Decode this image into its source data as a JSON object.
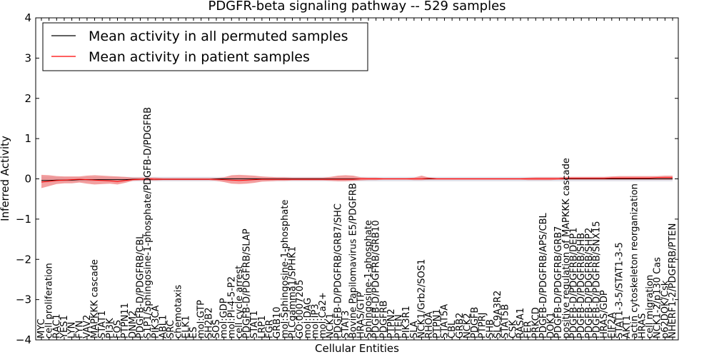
{
  "chart_data": {
    "type": "line",
    "title": "PDGFR-beta signaling pathway -- 529 samples",
    "xlabel": "Cellular Entities",
    "ylabel": "Inferred Activity",
    "ylim": [
      -4,
      4
    ],
    "yticks": [
      -4,
      -3,
      -2,
      -1,
      0,
      1,
      2,
      3,
      4
    ],
    "yticks_labels": [
      "−4",
      "−3",
      "−2",
      "−1",
      "0",
      "1",
      "2",
      "3",
      "4"
    ],
    "grid": false,
    "legend_position": "top-left",
    "categories": [
      "MYC",
      "cell proliferation",
      "RAC1",
      "YES1",
      "LYN",
      "FYN",
      "VAV2",
      "MAPKKK cascade",
      "STAT1",
      "PI3K",
      "FOS",
      "PTPN11",
      "DNM2",
      "PDGFB-D/PDGFRB/CBL",
      "S1P1/Sphingosine-1-phosphate/PDGFB-D/PDGFRB",
      "PIK3CA",
      "ABL1",
      "SRC",
      "chemotaxis",
      "ELK1",
      "ES",
      "mol:GTP",
      "SH2B2",
      "SOS",
      "mol:GDP",
      "mol:PI-4-5-P2",
      "cell cycle arrest",
      "PDGFB-D/PDGFRB/SLAP",
      "STAT1",
      "LRP1",
      "FGR",
      "GRB10",
      "mol:Sphingosine-1-phosphate",
      "PLCgamma1/SPHK1",
      "GO:0007205",
      "mol:DAG",
      "mol:IP3",
      "mol:Ca2+",
      "NCK1",
      "PDGFB-D/PDGFRB/GRB7/SHC",
      "STAT3",
      "Bovine Papilomavirus E5/PDGFRB",
      "HRAS/GTP",
      "Sphingosine-1-phosphate",
      "PDGFB-D/PDGFRB/GRB10",
      "PDGFRB",
      "PTPN2",
      "PTEN",
      "PIK3R1",
      "SLA",
      "NCK1/Grb2/SOS1",
      "RHOA",
      "PTPN1",
      "STAT5A",
      "CBL",
      "GRB2",
      "NCK2",
      "PDGFB",
      "PTPRJ",
      "SHB",
      "SLC9A3R2",
      "STAT5B",
      "CSK",
      "RASA1",
      "FER",
      "PRKCD",
      "PDGFB-D/PDGFRB/APS/CBL",
      "DOK1",
      "PDGFB-D/PDGFRB/GRB7",
      "positive regulation of MAPKKK cascade",
      "PDGFB-D/PDGFRB/DEP1",
      "PDGFB-D/PDGFRB/SHB",
      "PDGFB-D/PDGFRB/SHP2",
      "PDGFB-D/PDGFRB/SNX15",
      "HRAS/GDP",
      "EIF2A",
      "STAT1-3-5/STAT1-3-5",
      "AKT1",
      "actin cytoskeleton reorganization",
      "HRAS",
      "cell migration",
      "NCK1-2/p130 Cas",
      "p62DOK/Csk",
      "NHERF1-2/PDGFRB/PTEN"
    ],
    "series": [
      {
        "name": "Mean activity in all permuted samples",
        "color": "#000000",
        "values": [
          -0.04,
          -0.04,
          -0.03,
          -0.03,
          -0.03,
          -0.02,
          -0.02,
          -0.02,
          -0.02,
          -0.02,
          -0.02,
          -0.02,
          -0.01,
          -0.01,
          -0.01,
          -0.01,
          -0.01,
          -0.01,
          -0.01,
          -0.01,
          -0.01,
          -0.01,
          -0.01,
          0,
          0,
          0,
          0,
          0,
          0,
          0,
          0,
          0,
          0,
          0,
          0,
          0,
          0,
          0,
          0,
          0,
          0,
          0,
          0,
          0,
          0,
          0,
          0,
          0,
          0,
          0,
          0,
          0,
          0,
          0,
          0,
          0,
          0,
          0,
          0,
          0,
          0,
          0,
          0,
          0,
          0,
          0,
          0,
          0,
          0,
          0,
          0,
          0,
          0,
          0,
          0,
          0,
          0,
          0,
          0,
          0,
          0,
          0,
          0,
          0
        ]
      },
      {
        "name": "Mean activity in patient samples",
        "color": "#ff0000",
        "band_color": "#f08080",
        "values": [
          -0.08,
          -0.06,
          -0.04,
          -0.03,
          -0.02,
          -0.01,
          -0.02,
          -0.03,
          -0.04,
          -0.05,
          -0.07,
          -0.04,
          -0.02,
          -0.01,
          0,
          -0.01,
          -0.01,
          -0.01,
          -0.01,
          -0.01,
          -0.01,
          -0.01,
          -0.01,
          -0.01,
          -0.02,
          -0.03,
          -0.04,
          -0.03,
          -0.02,
          -0.01,
          -0.01,
          -0.01,
          -0.01,
          -0.01,
          -0.01,
          -0.01,
          -0.01,
          -0.01,
          -0.01,
          -0.01,
          -0.01,
          -0.01,
          0,
          0,
          0,
          0,
          0,
          0,
          0,
          0,
          0,
          0.01,
          0,
          0,
          0,
          0,
          0,
          0,
          0,
          0,
          0,
          0,
          0,
          0,
          0,
          0,
          0,
          0,
          0,
          0.01,
          0.01,
          0.01,
          0.01,
          0.01,
          0.01,
          0.02,
          0.02,
          0.02,
          0.02,
          0.02,
          0.02,
          0.03,
          0.03,
          0.03
        ],
        "band_low": [
          -0.23,
          -0.18,
          -0.13,
          -0.11,
          -0.11,
          -0.09,
          -0.12,
          -0.14,
          -0.13,
          -0.12,
          -0.14,
          -0.1,
          -0.05,
          -0.04,
          -0.04,
          -0.04,
          -0.03,
          -0.03,
          -0.03,
          -0.03,
          -0.03,
          -0.03,
          -0.03,
          -0.05,
          -0.08,
          -0.12,
          -0.13,
          -0.12,
          -0.1,
          -0.07,
          -0.06,
          -0.05,
          -0.05,
          -0.04,
          -0.04,
          -0.04,
          -0.04,
          -0.04,
          -0.05,
          -0.06,
          -0.06,
          -0.05,
          -0.04,
          -0.03,
          -0.03,
          -0.02,
          -0.02,
          -0.02,
          -0.02,
          -0.03,
          -0.03,
          -0.02,
          -0.02,
          -0.02,
          -0.02,
          -0.02,
          -0.02,
          -0.02,
          -0.02,
          -0.02,
          -0.02,
          -0.02,
          -0.02,
          -0.02,
          -0.03,
          -0.03,
          -0.03,
          -0.03,
          -0.02,
          -0.02,
          -0.02,
          -0.02,
          -0.02,
          -0.02,
          -0.02,
          -0.02,
          -0.02,
          -0.02,
          -0.02,
          -0.02,
          -0.02,
          -0.02,
          -0.02,
          -0.02
        ],
        "band_high": [
          0.1,
          0.09,
          0.07,
          0.06,
          0.06,
          0.06,
          0.08,
          0.09,
          0.08,
          0.07,
          0.06,
          0.05,
          0.03,
          0.03,
          0.03,
          0.03,
          0.02,
          0.02,
          0.02,
          0.02,
          0.02,
          0.02,
          0.02,
          0.02,
          0.04,
          0.09,
          0.1,
          0.09,
          0.08,
          0.06,
          0.05,
          0.04,
          0.04,
          0.03,
          0.03,
          0.03,
          0.03,
          0.03,
          0.05,
          0.08,
          0.09,
          0.08,
          0.04,
          0.03,
          0.03,
          0.02,
          0.02,
          0.02,
          0.02,
          0.03,
          0.08,
          0.03,
          0.02,
          0.02,
          0.02,
          0.02,
          0.02,
          0.02,
          0.02,
          0.02,
          0.02,
          0.02,
          0.02,
          0.02,
          0.03,
          0.04,
          0.04,
          0.04,
          0.04,
          0.05,
          0.05,
          0.05,
          0.05,
          0.05,
          0.05,
          0.06,
          0.07,
          0.07,
          0.07,
          0.07,
          0.07,
          0.07,
          0.08,
          0.08
        ],
        "perm_band_low": [
          -0.1,
          -0.09,
          -0.08,
          -0.08,
          -0.07,
          -0.07,
          -0.07,
          -0.07,
          -0.07,
          -0.07,
          -0.07,
          -0.07,
          -0.06,
          -0.06,
          -0.06,
          -0.06,
          -0.06,
          -0.06,
          -0.06,
          -0.06,
          -0.06,
          -0.06,
          -0.06,
          -0.06,
          -0.06,
          -0.06,
          -0.06,
          -0.06,
          -0.06,
          -0.06,
          -0.06,
          -0.06,
          -0.06,
          -0.06,
          -0.06,
          -0.06,
          -0.06,
          -0.06,
          -0.06,
          -0.06,
          -0.06,
          -0.06,
          -0.06,
          -0.06,
          -0.06,
          -0.06,
          -0.06,
          -0.06,
          -0.06,
          -0.06,
          -0.06,
          -0.06,
          -0.06,
          -0.06,
          -0.06,
          -0.06,
          -0.06,
          -0.06,
          -0.06,
          -0.06,
          -0.06,
          -0.06,
          -0.06,
          -0.06,
          -0.06,
          -0.06,
          -0.06,
          -0.06,
          -0.06,
          -0.06,
          -0.06,
          -0.06,
          -0.06,
          -0.06,
          -0.06,
          -0.06,
          -0.06,
          -0.06,
          -0.06,
          -0.06,
          -0.06,
          -0.06,
          -0.06,
          -0.06
        ],
        "perm_band_high": [
          0.06,
          0.06,
          0.05,
          0.05,
          0.05,
          0.05,
          0.05,
          0.05,
          0.05,
          0.05,
          0.05,
          0.05,
          0.05,
          0.05,
          0.05,
          0.05,
          0.05,
          0.05,
          0.05,
          0.05,
          0.05,
          0.05,
          0.05,
          0.05,
          0.05,
          0.05,
          0.05,
          0.05,
          0.05,
          0.05,
          0.05,
          0.05,
          0.05,
          0.05,
          0.05,
          0.05,
          0.05,
          0.05,
          0.05,
          0.05,
          0.05,
          0.05,
          0.05,
          0.05,
          0.05,
          0.05,
          0.05,
          0.05,
          0.05,
          0.05,
          0.05,
          0.05,
          0.05,
          0.05,
          0.05,
          0.05,
          0.05,
          0.05,
          0.05,
          0.05,
          0.05,
          0.05,
          0.05,
          0.05,
          0.05,
          0.05,
          0.05,
          0.05,
          0.05,
          0.05,
          0.05,
          0.05,
          0.05,
          0.05,
          0.05,
          0.05,
          0.05,
          0.05,
          0.05,
          0.05,
          0.05,
          0.05,
          0.05,
          0.05
        ]
      }
    ]
  }
}
